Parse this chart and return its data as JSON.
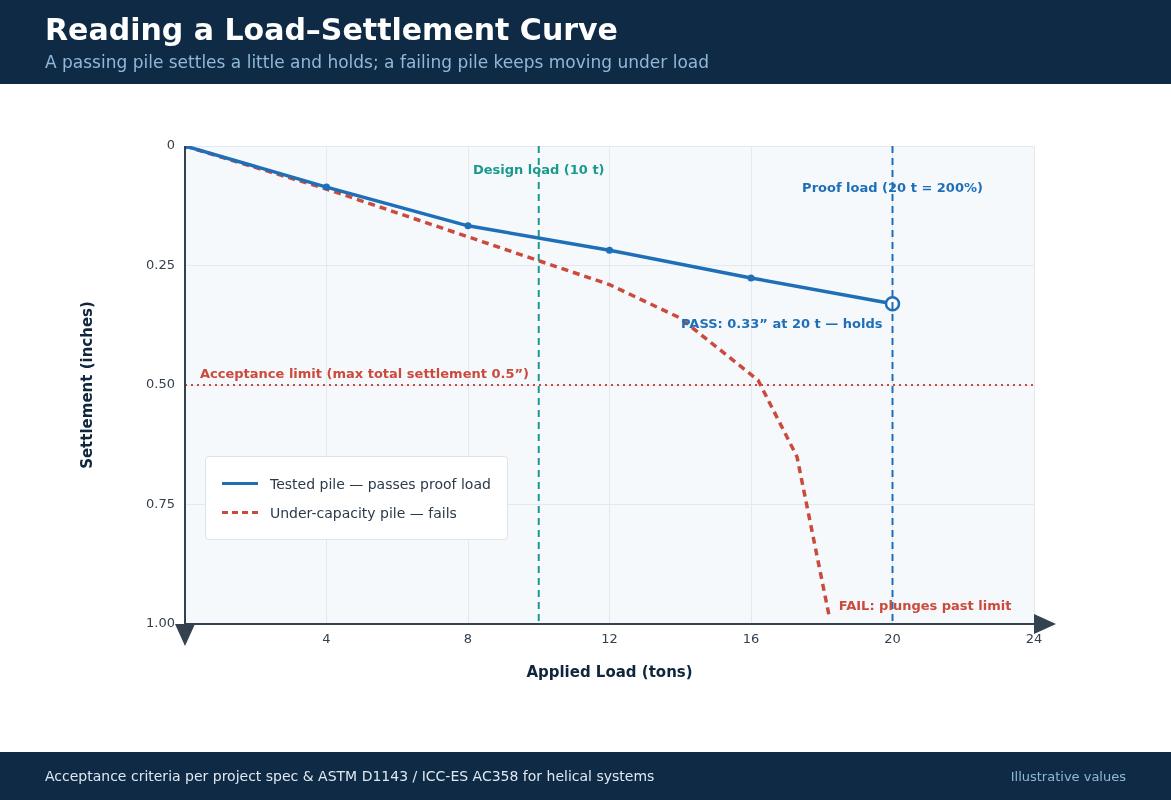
{
  "chart_data": {
    "type": "line",
    "title": "Reading a Load–Settlement Curve",
    "subtitle": "A passing pile settles a little and holds; a failing pile keeps moving under load",
    "xlabel": "Applied Load (tons)",
    "ylabel": "Settlement (inches)",
    "xlim": [
      0,
      24
    ],
    "xticks": [
      4,
      8,
      12,
      16,
      20,
      24
    ],
    "ylim": [
      1,
      0
    ],
    "yticks": [
      {
        "value": 0,
        "label": "0"
      },
      {
        "value": 0.25,
        "label": "0.25"
      },
      {
        "value": 0.5,
        "label": "0.50"
      },
      {
        "value": 0.75,
        "label": "0.75"
      },
      {
        "value": 1,
        "label": "1.00"
      }
    ],
    "grid": true,
    "legend": "bottom left",
    "series": [
      {
        "name": "Tested pile — passes proof load",
        "color": "#1f6fb8",
        "x": [
          0,
          4,
          8,
          12,
          16,
          20
        ],
        "values": [
          0,
          0.086,
          0.167,
          0.218,
          0.276,
          0.33
        ],
        "marker": "circle",
        "line_style": "solid"
      },
      {
        "name": "Under-capacity pile — fails",
        "color": "#cc4a3c",
        "x": [
          0,
          4,
          8,
          12,
          14,
          16.2,
          17.3,
          18.2
        ],
        "values": [
          0,
          0.09,
          0.19,
          0.29,
          0.36,
          0.49,
          0.65,
          0.98
        ],
        "marker": "none",
        "line_style": "dashed"
      }
    ],
    "ref_lines": [
      {
        "axis": "x",
        "value": 10,
        "label": "Design load (10 t)",
        "color": "#1a9a8c",
        "line_style": "dashed"
      },
      {
        "axis": "x",
        "value": 20,
        "label": "Proof load (20 t = 200%)",
        "color": "#1f6fb8",
        "line_style": "dashed"
      },
      {
        "axis": "y",
        "value": 0.5,
        "label": "Acceptance limit (max total settlement 0.5”)",
        "color": "#cc4a3c",
        "line_style": "dotted"
      }
    ],
    "annotations": [
      {
        "text": "PASS: 0.33” at 20 t — holds",
        "x": 20,
        "y": 0.33
      },
      {
        "text": "FAIL: plunges past limit",
        "x": 18.2,
        "y": 0.98
      },
      "Acceptance criteria per project spec & ASTM D1143 / ICC-ES AC358 for helical systems",
      "Illustrative values"
    ]
  }
}
